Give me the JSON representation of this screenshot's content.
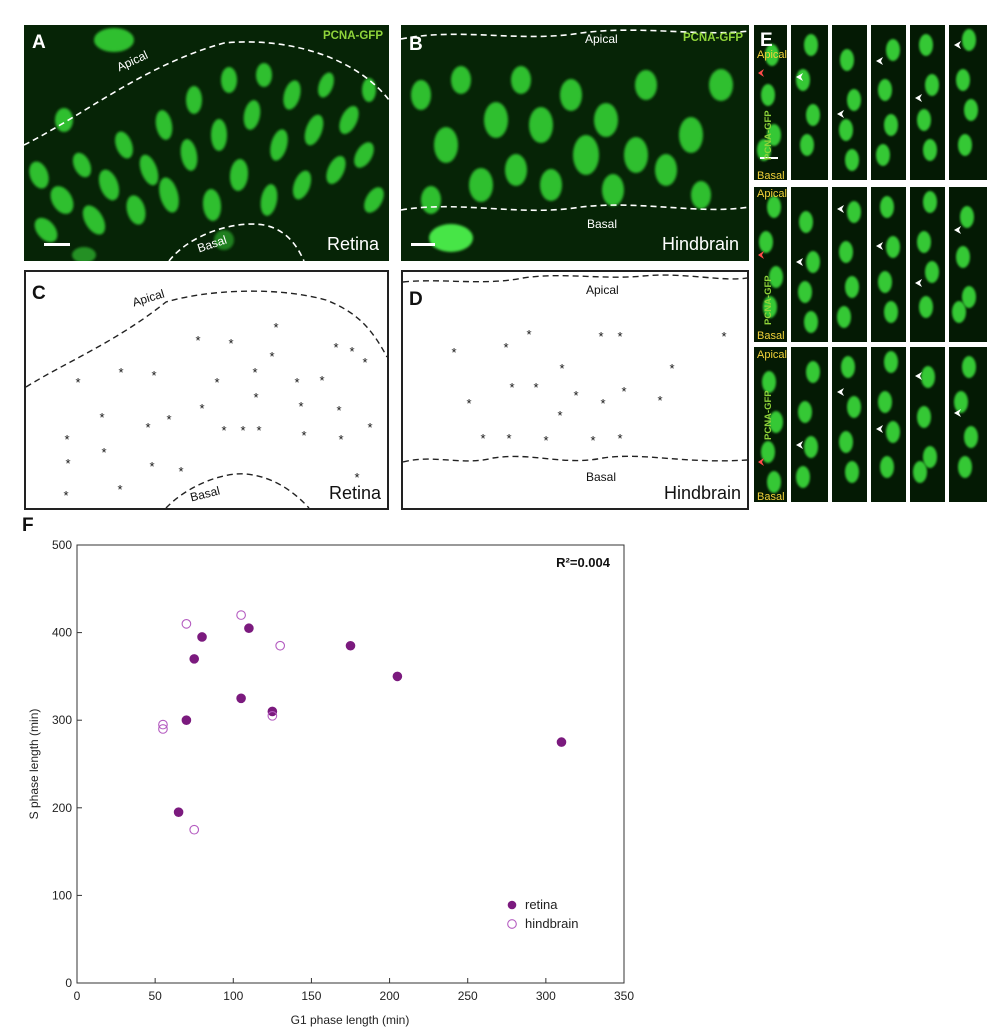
{
  "panel_a": {
    "label": "A",
    "marker": "PCNA-GFP",
    "apical": "Apical",
    "basal": "Basal",
    "tissue": "Retina"
  },
  "panel_b": {
    "label": "B",
    "marker": "PCNA-GFP",
    "apical": "Apical",
    "basal": "Basal",
    "tissue": "Hindbrain"
  },
  "panel_c": {
    "label": "C",
    "apical": "Apical",
    "basal": "Basal",
    "tissue": "Retina"
  },
  "panel_d": {
    "label": "D",
    "apical": "Apical",
    "basal": "Basal",
    "tissue": "Hindbrain"
  },
  "panel_e": {
    "label": "E",
    "apical": "Apical",
    "basal": "Basal",
    "marker": "PCNA-GFP"
  },
  "panel_f": {
    "label": "F",
    "r2": "R²=0.004"
  },
  "colors": {
    "retina": "#7b1a7e",
    "hindbrain": "#b45bc0",
    "gfp": "#3ad83a",
    "marker_text": "#8fd43a",
    "apical_basal_text": "#f2d23a"
  },
  "chart_data": {
    "type": "scatter",
    "xlabel": "G1 phase length (min)",
    "ylabel": "S phase length (min)",
    "xlim": [
      0,
      350
    ],
    "ylim": [
      0,
      500
    ],
    "xticks": [
      "0",
      "50",
      "100",
      "150",
      "200",
      "250",
      "300",
      "350"
    ],
    "yticks": [
      "0",
      "100",
      "200",
      "300",
      "400",
      "500"
    ],
    "legend_position": "bottom-right",
    "annotation": "R²=0.004",
    "series": [
      {
        "name": "retina",
        "marker": "filled",
        "points": [
          [
            65,
            195
          ],
          [
            70,
            300
          ],
          [
            75,
            370
          ],
          [
            80,
            395
          ],
          [
            105,
            325
          ],
          [
            110,
            405
          ],
          [
            125,
            310
          ],
          [
            175,
            385
          ],
          [
            205,
            350
          ],
          [
            310,
            275
          ]
        ]
      },
      {
        "name": "hindbrain",
        "marker": "open",
        "points": [
          [
            55,
            295
          ],
          [
            55,
            290
          ],
          [
            70,
            410
          ],
          [
            75,
            175
          ],
          [
            105,
            420
          ],
          [
            125,
            305
          ],
          [
            130,
            385
          ]
        ]
      }
    ]
  }
}
